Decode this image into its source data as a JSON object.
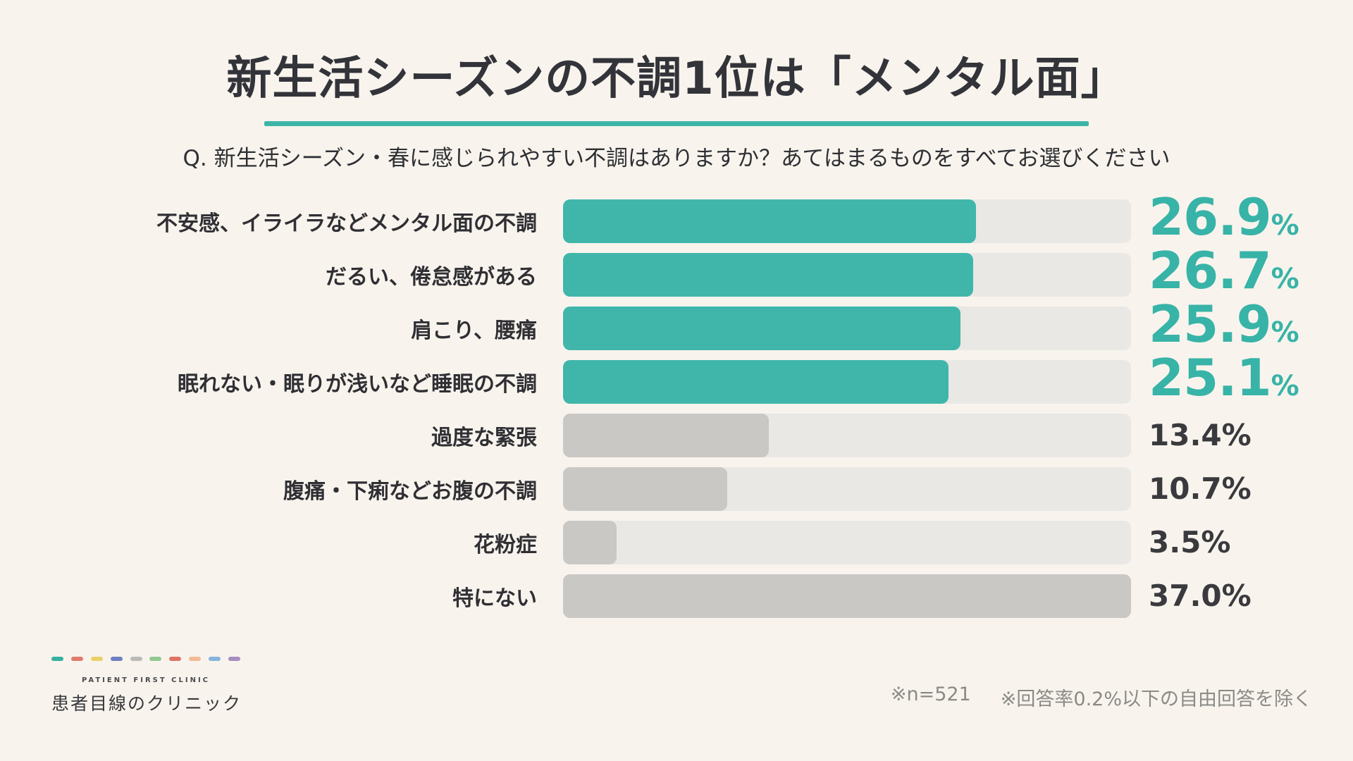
{
  "page": {
    "background": "#F8F4ED",
    "accent": "#3CB5A9"
  },
  "header": {
    "title": "新生活シーズンの不調1位は「メンタル面」",
    "question": "Q. 新生活シーズン・春に感じられやすい不調はありますか？あてはまるものをすべてお選びください"
  },
  "chart_data": {
    "type": "bar",
    "orientation": "horizontal",
    "title": "新生活シーズンの不調1位は「メンタル面」",
    "subtitle": "Q. 新生活シーズン・春に感じられやすい不調はありますか？あてはまるものをすべてお選びください",
    "categories": [
      "不安感、イライラなどメンタル面の不調",
      "だるい、倦怠感がある",
      "肩こり、腰痛",
      "眠れない・眠りが浅いなど睡眠の不調",
      "過度な緊張",
      "腹痛・下痢などお腹の不調",
      "花粉症",
      "特にない"
    ],
    "values": [
      26.9,
      26.7,
      25.9,
      25.1,
      13.4,
      10.7,
      3.5,
      37.0
    ],
    "value_labels": [
      "26.9",
      "26.7",
      "25.9",
      "25.1",
      "13.4",
      "10.7",
      "3.5",
      "37.0"
    ],
    "unit": "%",
    "highlighted": [
      true,
      true,
      true,
      true,
      false,
      false,
      false,
      false
    ],
    "xlim": [
      0,
      37.0
    ],
    "grid": false,
    "legend": "none",
    "colors": {
      "highlight_fill": "#40B6AB",
      "highlight_value": "#38B3A7",
      "muted_fill": "#C9C8C5",
      "muted_value": "#3A3A3E",
      "track": "#E9E8E5"
    }
  },
  "footnote": {
    "sample": "※n=521",
    "exclusion": "※回答率0.2%以下の自由回答を除く"
  },
  "logo": {
    "dashes": [
      "#35AFA0",
      "#E07A6B",
      "#E9D168",
      "#6D7FC0",
      "#B9B9B9",
      "#92C892",
      "#DE7366",
      "#F2BA95",
      "#87B4DD",
      "#A78BC1"
    ],
    "subtitle_en": "PATIENT FIRST CLINIC",
    "name_jp": "患者目線のクリニック"
  }
}
